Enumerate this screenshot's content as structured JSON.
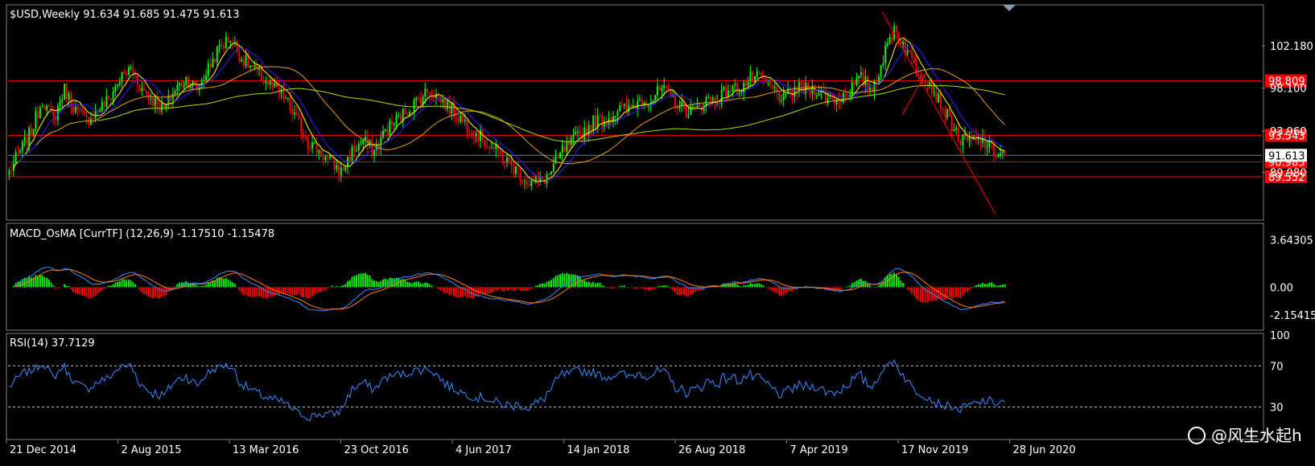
{
  "chart_data": {
    "type": "candlestick",
    "symbol_header": "$USD,Weekly  91.634 91.685 91.475 91.613",
    "x_dates": [
      "21 Dec 2014",
      "2 Aug 2015",
      "13 Mar 2016",
      "23 Oct 2016",
      "4 Jun 2017",
      "14 Jan 2018",
      "26 Aug 2018",
      "7 Apr 2019",
      "17 Nov 2019",
      "28 Jun 2020"
    ],
    "price_axis": {
      "ticks": [
        "102.180",
        "98.100",
        "93.960",
        "89.980"
      ],
      "tick_values": [
        102.18,
        98.1,
        93.96,
        89.98
      ],
      "current_price_label": "91.613",
      "current_price": 91.613,
      "ylim": [
        85.5,
        106.0
      ]
    },
    "horizontal_levels": [
      {
        "label": "98.809",
        "value": 98.809,
        "color": "#ff0000"
      },
      {
        "label": "93.543",
        "value": 93.543,
        "color": "#ff0000"
      },
      {
        "label": "90.985",
        "value": 90.985,
        "color": "#ff0000"
      },
      {
        "label": "89.552",
        "value": 89.552,
        "color": "#ff0000"
      }
    ],
    "price_series": [
      90,
      92,
      94,
      97,
      95,
      98,
      96,
      95,
      96,
      97,
      99,
      100,
      98,
      97,
      96,
      98,
      99,
      98,
      100,
      102,
      103,
      101,
      100,
      99,
      98,
      97,
      95,
      93,
      92,
      91,
      90,
      92,
      93,
      92,
      94,
      95,
      96,
      97,
      98,
      97,
      96,
      95,
      94,
      93,
      92,
      91,
      90,
      89,
      89,
      90,
      92,
      93,
      94,
      95,
      95,
      96,
      96,
      97,
      97,
      98,
      97,
      96,
      96,
      97,
      97,
      98,
      98,
      99,
      99,
      98,
      97,
      98,
      98,
      98,
      97,
      97,
      98,
      99,
      98,
      101,
      104,
      102,
      100,
      99,
      97,
      95,
      93,
      93,
      93,
      92,
      91.6
    ],
    "macd": {
      "title": "MACD_OsMA [CurrTF] (12,26,9) -1.17510 -1.15478",
      "ticks": [
        "3.64305",
        "0.00",
        "-2.15415"
      ],
      "tick_values": [
        3.64305,
        0.0,
        -2.15415
      ],
      "ylim": [
        -3.2,
        4.8
      ]
    },
    "rsi": {
      "title": "RSI(14) 37.7129",
      "ticks": [
        "100",
        "70",
        "30"
      ],
      "tick_values": [
        100,
        70,
        30
      ],
      "levels": [
        70,
        30
      ]
    },
    "colors": {
      "bull": "#00ff00",
      "bear": "#ff0000",
      "ma_fast": "#ffff00",
      "ma_mid": "#2424ff",
      "ma_slow": "#e5a01a",
      "ma_200": "#a6e000",
      "macd_line": "#3a8cff",
      "signal_line": "#ff7a1a",
      "rsi_line": "#3a8cff",
      "level": "#ff0000"
    }
  },
  "watermark": "@风生水起h"
}
